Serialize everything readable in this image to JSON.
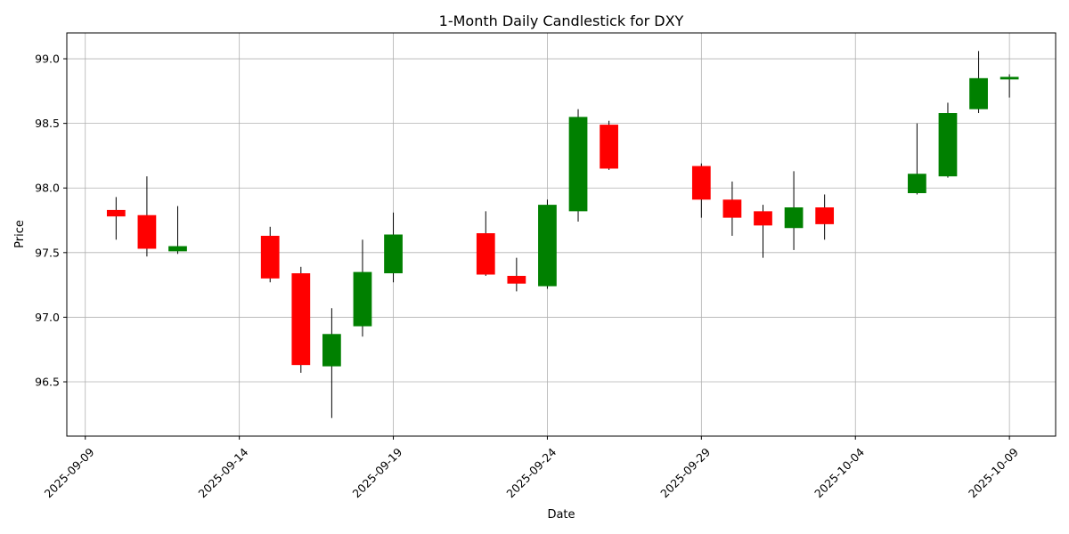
{
  "chart_data": {
    "type": "candlestick",
    "title": "1-Month Daily Candlestick for DXY",
    "xlabel": "Date",
    "ylabel": "Price",
    "grid": true,
    "x_ticks": [
      "2025-09-09",
      "2025-09-14",
      "2025-09-19",
      "2025-09-24",
      "2025-09-29",
      "2025-10-04",
      "2025-10-09"
    ],
    "y_ticks": [
      96.5,
      97.0,
      97.5,
      98.0,
      98.5,
      99.0
    ],
    "ylim": [
      96.08,
      99.2
    ],
    "xlim": [
      "2025-09-08.4",
      "2025-10-10.5"
    ],
    "colors": {
      "up": "#008000",
      "down": "#ff0000",
      "wick": "#000000",
      "grid": "#b0b0b0"
    },
    "candles": [
      {
        "date": "2025-09-10",
        "open": 97.83,
        "high": 97.93,
        "low": 97.6,
        "close": 97.78
      },
      {
        "date": "2025-09-11",
        "open": 97.79,
        "high": 98.09,
        "low": 97.47,
        "close": 97.53
      },
      {
        "date": "2025-09-12",
        "open": 97.51,
        "high": 97.86,
        "low": 97.49,
        "close": 97.55
      },
      {
        "date": "2025-09-15",
        "open": 97.63,
        "high": 97.7,
        "low": 97.27,
        "close": 97.3
      },
      {
        "date": "2025-09-16",
        "open": 97.34,
        "high": 97.39,
        "low": 96.57,
        "close": 96.63
      },
      {
        "date": "2025-09-17",
        "open": 96.62,
        "high": 97.07,
        "low": 96.22,
        "close": 96.87
      },
      {
        "date": "2025-09-18",
        "open": 96.93,
        "high": 97.6,
        "low": 96.85,
        "close": 97.35
      },
      {
        "date": "2025-09-19",
        "open": 97.34,
        "high": 97.81,
        "low": 97.27,
        "close": 97.64
      },
      {
        "date": "2025-09-22",
        "open": 97.65,
        "high": 97.82,
        "low": 97.32,
        "close": 97.33
      },
      {
        "date": "2025-09-23",
        "open": 97.32,
        "high": 97.46,
        "low": 97.2,
        "close": 97.26
      },
      {
        "date": "2025-09-24",
        "open": 97.24,
        "high": 97.91,
        "low": 97.22,
        "close": 97.87
      },
      {
        "date": "2025-09-25",
        "open": 97.82,
        "high": 98.61,
        "low": 97.74,
        "close": 98.55
      },
      {
        "date": "2025-09-26",
        "open": 98.49,
        "high": 98.52,
        "low": 98.14,
        "close": 98.15
      },
      {
        "date": "2025-09-29",
        "open": 98.17,
        "high": 98.19,
        "low": 97.77,
        "close": 97.91
      },
      {
        "date": "2025-09-30",
        "open": 97.91,
        "high": 98.05,
        "low": 97.63,
        "close": 97.77
      },
      {
        "date": "2025-10-01",
        "open": 97.82,
        "high": 97.87,
        "low": 97.46,
        "close": 97.71
      },
      {
        "date": "2025-10-02",
        "open": 97.69,
        "high": 98.13,
        "low": 97.52,
        "close": 97.85
      },
      {
        "date": "2025-10-03",
        "open": 97.85,
        "high": 97.95,
        "low": 97.6,
        "close": 97.72
      },
      {
        "date": "2025-10-06",
        "open": 97.96,
        "high": 98.5,
        "low": 97.95,
        "close": 98.11
      },
      {
        "date": "2025-10-07",
        "open": 98.09,
        "high": 98.66,
        "low": 98.08,
        "close": 98.58
      },
      {
        "date": "2025-10-08",
        "open": 98.61,
        "high": 99.06,
        "low": 98.58,
        "close": 98.85
      },
      {
        "date": "2025-10-09",
        "open": 98.84,
        "high": 98.88,
        "low": 98.7,
        "close": 98.86
      }
    ]
  }
}
